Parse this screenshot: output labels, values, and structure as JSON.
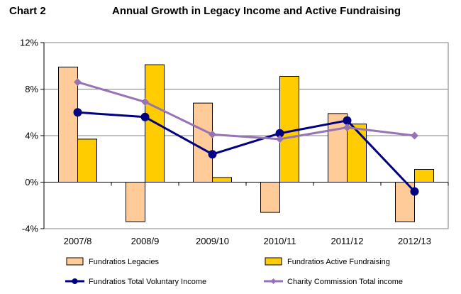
{
  "header": {
    "label": "Chart 2",
    "title": "Annual Growth in Legacy Income and Active Fundraising"
  },
  "chart_data": {
    "type": "bar",
    "categories": [
      "2007/8",
      "2008/9",
      "2009/10",
      "2010/11",
      "2011/12",
      "2012/13"
    ],
    "ylim": [
      -4,
      12
    ],
    "yticks": [
      -4,
      0,
      4,
      8,
      12
    ],
    "ytick_labels": [
      "-4%",
      "0%",
      "4%",
      "8%",
      "12%"
    ],
    "grid": true,
    "legend_position": "bottom",
    "series": [
      {
        "name": "Fundratios Legacies",
        "kind": "bar",
        "color": "#FFCC99",
        "values": [
          9.9,
          -3.4,
          6.8,
          -2.6,
          5.9,
          -3.4
        ]
      },
      {
        "name": "Fundratios Active Fundraising",
        "kind": "bar",
        "color": "#FFCC00",
        "values": [
          3.7,
          10.1,
          0.4,
          9.1,
          5.0,
          1.1
        ]
      },
      {
        "name": "Fundratios Total Voluntary Income",
        "kind": "line",
        "color": "#000080",
        "marker": "circle",
        "values": [
          6.0,
          5.6,
          2.4,
          4.2,
          5.3,
          -0.8
        ]
      },
      {
        "name": "Charity Commission Total income",
        "kind": "line",
        "color": "#9773B5",
        "marker": "diamond",
        "values": [
          8.6,
          6.9,
          4.1,
          3.7,
          4.7,
          4.0
        ]
      }
    ]
  }
}
